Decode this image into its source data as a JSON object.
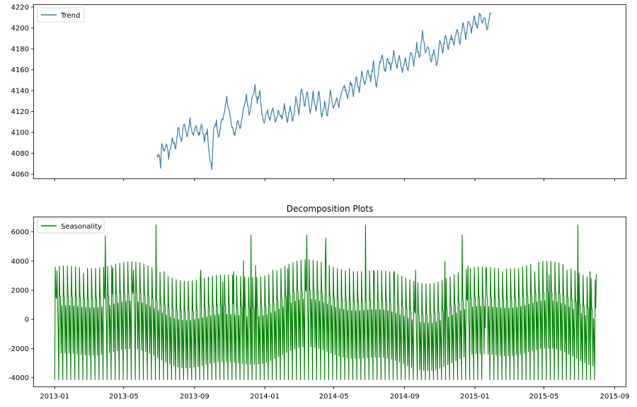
{
  "chart_data": [
    {
      "type": "line",
      "subplot": "top",
      "title": "",
      "xlabel": "",
      "ylabel": "",
      "xlim": [
        "2012-11-26",
        "2015-09-20"
      ],
      "ylim": [
        4056,
        4222
      ],
      "x_tick_labels_visible": false,
      "x_ticks": [
        "2013-01",
        "2013-05",
        "2013-09",
        "2014-01",
        "2014-05",
        "2014-09",
        "2015-01",
        "2015-05",
        "2015-09"
      ],
      "y_ticks": [
        4060,
        4080,
        4100,
        4120,
        4140,
        4160,
        4180,
        4200,
        4220
      ],
      "grid": false,
      "legend_position": "top-left",
      "series": [
        {
          "name": "Trend",
          "color": "#3a7fa8",
          "points": [
            [
              "2013-06-28",
              4078
            ],
            [
              "2013-07-02",
              4076
            ],
            [
              "2013-07-04",
              4067
            ],
            [
              "2013-07-06",
              4088
            ],
            [
              "2013-07-10",
              4082
            ],
            [
              "2013-07-14",
              4090
            ],
            [
              "2013-07-18",
              4076
            ],
            [
              "2013-07-24",
              4093
            ],
            [
              "2013-07-30",
              4086
            ],
            [
              "2013-08-04",
              4105
            ],
            [
              "2013-08-09",
              4090
            ],
            [
              "2013-08-14",
              4110
            ],
            [
              "2013-08-19",
              4095
            ],
            [
              "2013-08-24",
              4112
            ],
            [
              "2013-08-29",
              4098
            ],
            [
              "2013-09-03",
              4107
            ],
            [
              "2013-09-08",
              4096
            ],
            [
              "2013-09-13",
              4108
            ],
            [
              "2013-09-18",
              4092
            ],
            [
              "2013-09-23",
              4103
            ],
            [
              "2013-09-26",
              4080
            ],
            [
              "2013-09-29",
              4070
            ],
            [
              "2013-10-01",
              4064
            ],
            [
              "2013-10-04",
              4102
            ],
            [
              "2013-10-09",
              4110
            ],
            [
              "2013-10-13",
              4094
            ],
            [
              "2013-10-18",
              4112
            ],
            [
              "2013-10-23",
              4118
            ],
            [
              "2013-10-27",
              4133
            ],
            [
              "2013-11-01",
              4118
            ],
            [
              "2013-11-05",
              4104
            ],
            [
              "2013-11-10",
              4098
            ],
            [
              "2013-11-15",
              4112
            ],
            [
              "2013-11-20",
              4104
            ],
            [
              "2013-11-25",
              4122
            ],
            [
              "2013-11-30",
              4135
            ],
            [
              "2013-12-05",
              4118
            ],
            [
              "2013-12-10",
              4132
            ],
            [
              "2013-12-15",
              4144
            ],
            [
              "2013-12-19",
              4128
            ],
            [
              "2013-12-23",
              4140
            ],
            [
              "2013-12-27",
              4118
            ],
            [
              "2013-12-31",
              4108
            ],
            [
              "2014-01-05",
              4122
            ],
            [
              "2014-01-10",
              4112
            ],
            [
              "2014-01-15",
              4124
            ],
            [
              "2014-01-20",
              4108
            ],
            [
              "2014-01-25",
              4122
            ],
            [
              "2014-01-30",
              4112
            ],
            [
              "2014-02-04",
              4126
            ],
            [
              "2014-02-09",
              4108
            ],
            [
              "2014-02-14",
              4124
            ],
            [
              "2014-02-19",
              4110
            ],
            [
              "2014-02-24",
              4133
            ],
            [
              "2014-03-01",
              4118
            ],
            [
              "2014-03-06",
              4143
            ],
            [
              "2014-03-11",
              4124
            ],
            [
              "2014-03-16",
              4140
            ],
            [
              "2014-03-21",
              4118
            ],
            [
              "2014-03-26",
              4138
            ],
            [
              "2014-03-31",
              4120
            ],
            [
              "2014-04-05",
              4140
            ],
            [
              "2014-04-10",
              4114
            ],
            [
              "2014-04-15",
              4128
            ],
            [
              "2014-04-20",
              4115
            ],
            [
              "2014-04-25",
              4140
            ],
            [
              "2014-04-30",
              4122
            ],
            [
              "2014-05-05",
              4133
            ],
            [
              "2014-05-10",
              4126
            ],
            [
              "2014-05-15",
              4138
            ],
            [
              "2014-05-20",
              4144
            ],
            [
              "2014-05-25",
              4132
            ],
            [
              "2014-05-30",
              4150
            ],
            [
              "2014-06-04",
              4136
            ],
            [
              "2014-06-09",
              4152
            ],
            [
              "2014-06-14",
              4140
            ],
            [
              "2014-06-19",
              4158
            ],
            [
              "2014-06-24",
              4145
            ],
            [
              "2014-06-29",
              4162
            ],
            [
              "2014-07-04",
              4150
            ],
            [
              "2014-07-09",
              4168
            ],
            [
              "2014-07-14",
              4142
            ],
            [
              "2014-07-19",
              4165
            ],
            [
              "2014-07-24",
              4175
            ],
            [
              "2014-07-29",
              4158
            ],
            [
              "2014-08-03",
              4172
            ],
            [
              "2014-08-08",
              4160
            ],
            [
              "2014-08-13",
              4178
            ],
            [
              "2014-08-18",
              4162
            ],
            [
              "2014-08-23",
              4172
            ],
            [
              "2014-08-28",
              4158
            ],
            [
              "2014-09-02",
              4170
            ],
            [
              "2014-09-07",
              4158
            ],
            [
              "2014-09-12",
              4178
            ],
            [
              "2014-09-17",
              4165
            ],
            [
              "2014-09-22",
              4185
            ],
            [
              "2014-09-27",
              4170
            ],
            [
              "2014-10-02",
              4198
            ],
            [
              "2014-10-07",
              4175
            ],
            [
              "2014-10-12",
              4182
            ],
            [
              "2014-10-17",
              4168
            ],
            [
              "2014-10-22",
              4178
            ],
            [
              "2014-10-27",
              4163
            ],
            [
              "2014-11-01",
              4190
            ],
            [
              "2014-11-06",
              4176
            ],
            [
              "2014-11-11",
              4195
            ],
            [
              "2014-11-16",
              4180
            ],
            [
              "2014-11-21",
              4192
            ],
            [
              "2014-11-26",
              4184
            ],
            [
              "2014-12-01",
              4200
            ],
            [
              "2014-12-06",
              4185
            ],
            [
              "2014-12-11",
              4205
            ],
            [
              "2014-12-16",
              4190
            ],
            [
              "2014-12-21",
              4208
            ],
            [
              "2014-12-26",
              4196
            ],
            [
              "2014-12-31",
              4210
            ],
            [
              "2015-01-05",
              4198
            ],
            [
              "2015-01-09",
              4216
            ],
            [
              "2015-01-13",
              4205
            ],
            [
              "2015-01-18",
              4210
            ],
            [
              "2015-01-23",
              4197
            ],
            [
              "2015-01-26",
              4212
            ],
            [
              "2015-01-29",
              4213
            ]
          ]
        }
      ]
    },
    {
      "type": "line",
      "subplot": "bottom",
      "title": "Decomposition Plots",
      "xlabel": "",
      "ylabel": "",
      "xlim": [
        "2012-11-26",
        "2015-09-20"
      ],
      "ylim": [
        -4600,
        7000
      ],
      "x_ticks": [
        "2013-01",
        "2013-05",
        "2013-09",
        "2014-01",
        "2014-05",
        "2014-09",
        "2015-01",
        "2015-05",
        "2015-09"
      ],
      "y_ticks": [
        -4000,
        -2000,
        0,
        2000,
        4000,
        6000
      ],
      "grid": false,
      "legend_position": "top-left",
      "series": [
        {
          "name": "Seasonality",
          "color": "#008000",
          "start_date": "2013-01-01",
          "end_date": "2015-07-31",
          "weekly_pattern": [
            -4150,
            3300,
            1300,
            1100,
            -2700,
            600,
            -900
          ],
          "spikes": [
            [
              "2013-01-05",
              3350
            ],
            [
              "2013-02-20",
              3200
            ],
            [
              "2013-03-30",
              5750
            ],
            [
              "2013-04-12",
              3550
            ],
            [
              "2013-05-18",
              3400
            ],
            [
              "2013-06-26",
              6500
            ],
            [
              "2013-07-10",
              3300
            ],
            [
              "2013-09-12",
              3400
            ],
            [
              "2013-10-20",
              2600
            ],
            [
              "2013-11-08",
              3300
            ],
            [
              "2013-11-25",
              4050
            ],
            [
              "2013-12-08",
              5800
            ],
            [
              "2013-12-16",
              3700
            ],
            [
              "2014-01-15",
              3400
            ],
            [
              "2014-02-10",
              3500
            ],
            [
              "2014-03-15",
              5800
            ],
            [
              "2014-04-17",
              5600
            ],
            [
              "2014-05-28",
              3500
            ],
            [
              "2014-06-25",
              6500
            ],
            [
              "2014-07-10",
              3300
            ],
            [
              "2014-08-14",
              3300
            ],
            [
              "2014-09-20",
              3400
            ],
            [
              "2014-11-10",
              4000
            ],
            [
              "2014-12-10",
              5800
            ],
            [
              "2014-12-20",
              3700
            ],
            [
              "2015-01-20",
              3400
            ],
            [
              "2015-02-18",
              3300
            ],
            [
              "2015-03-18",
              3500
            ],
            [
              "2015-04-15",
              3300
            ],
            [
              "2015-05-10",
              3100
            ],
            [
              "2015-06-10",
              3400
            ],
            [
              "2015-06-29",
              6500
            ],
            [
              "2015-07-20",
              3300
            ],
            [
              "2015-07-31",
              3100
            ]
          ]
        }
      ]
    }
  ]
}
